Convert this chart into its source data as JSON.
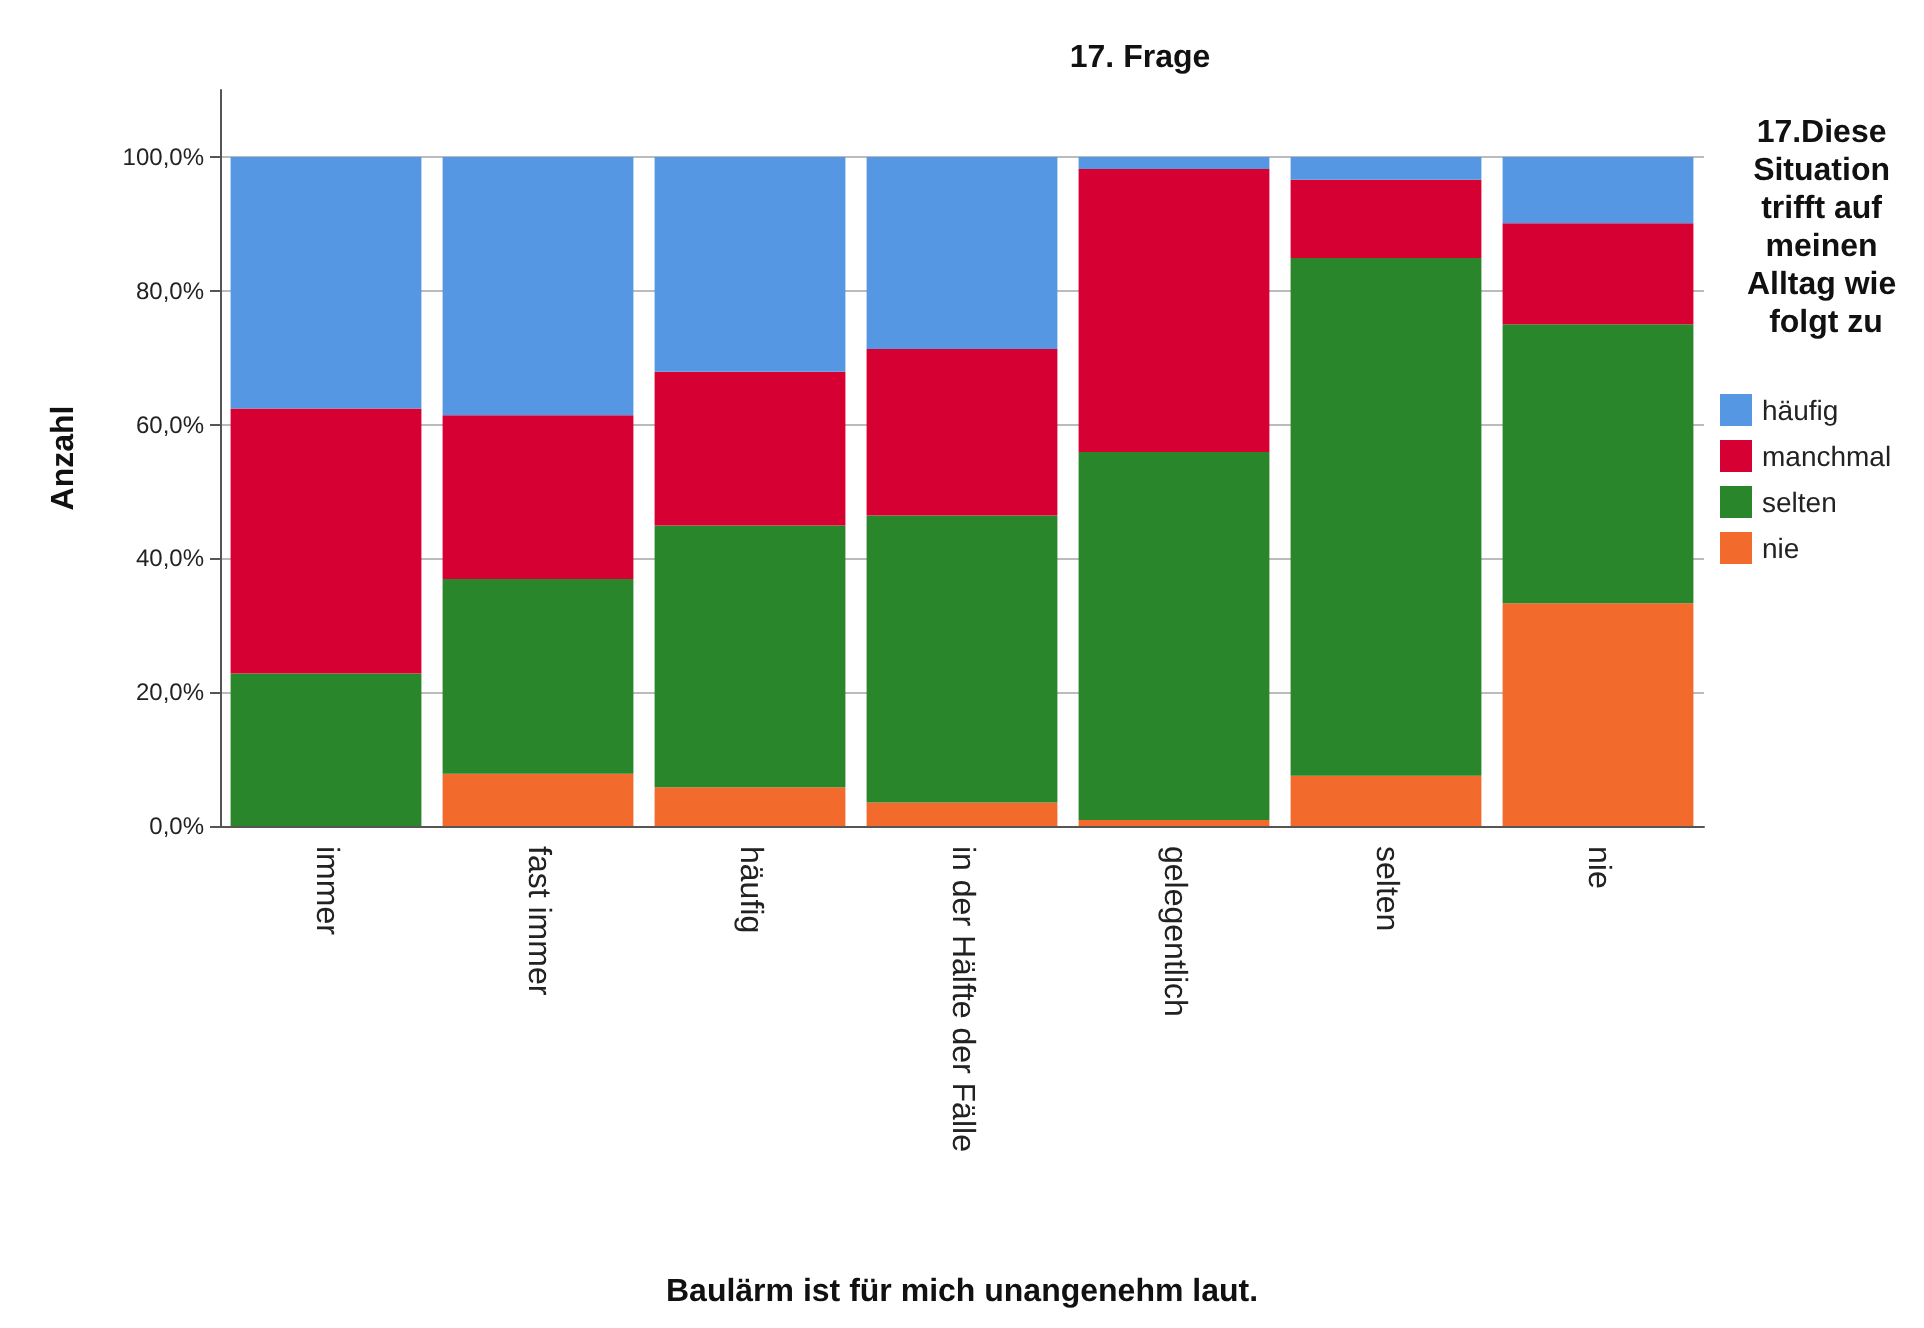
{
  "chart_data": {
    "type": "bar",
    "stacked": true,
    "title": "17. Frage",
    "xlabel": "Baulärm ist für mich unangenehm laut.",
    "ylabel": "Anzahl",
    "legend_title": "17.Diese Situation trifft auf meinen Alltag wie folgt zu",
    "categories": [
      "immer",
      "fast immer",
      "häufig",
      "in der Hälfte der Fälle",
      "gelegentlich",
      "selten",
      "nie"
    ],
    "series": [
      {
        "name": "nie",
        "color": "#f26a2c",
        "values": [
          0,
          7.8,
          5.8,
          3.5,
          0.9,
          7.5,
          33.3
        ]
      },
      {
        "name": "selten",
        "color": "#2a862a",
        "values": [
          22.8,
          29.1,
          39.1,
          42.9,
          55,
          77.4,
          41.7
        ]
      },
      {
        "name": "manchmal",
        "color": "#d70032",
        "values": [
          39.6,
          24.5,
          23,
          24.9,
          42.3,
          11.7,
          15.1
        ]
      },
      {
        "name": "häufig",
        "color": "#5597e3",
        "values": [
          37.6,
          38.6,
          32.1,
          28.7,
          1.8,
          3.4,
          9.9
        ]
      }
    ],
    "ylim": [
      0,
      110
    ],
    "yticks": [
      {
        "value": 0,
        "label": "0,0%"
      },
      {
        "value": 20,
        "label": "20,0%"
      },
      {
        "value": 40,
        "label": "40,0%"
      },
      {
        "value": 60,
        "label": "60,0%"
      },
      {
        "value": 80,
        "label": "80,0%"
      },
      {
        "value": 100,
        "label": "100,0%"
      }
    ],
    "grid": "y",
    "legend": "right"
  }
}
